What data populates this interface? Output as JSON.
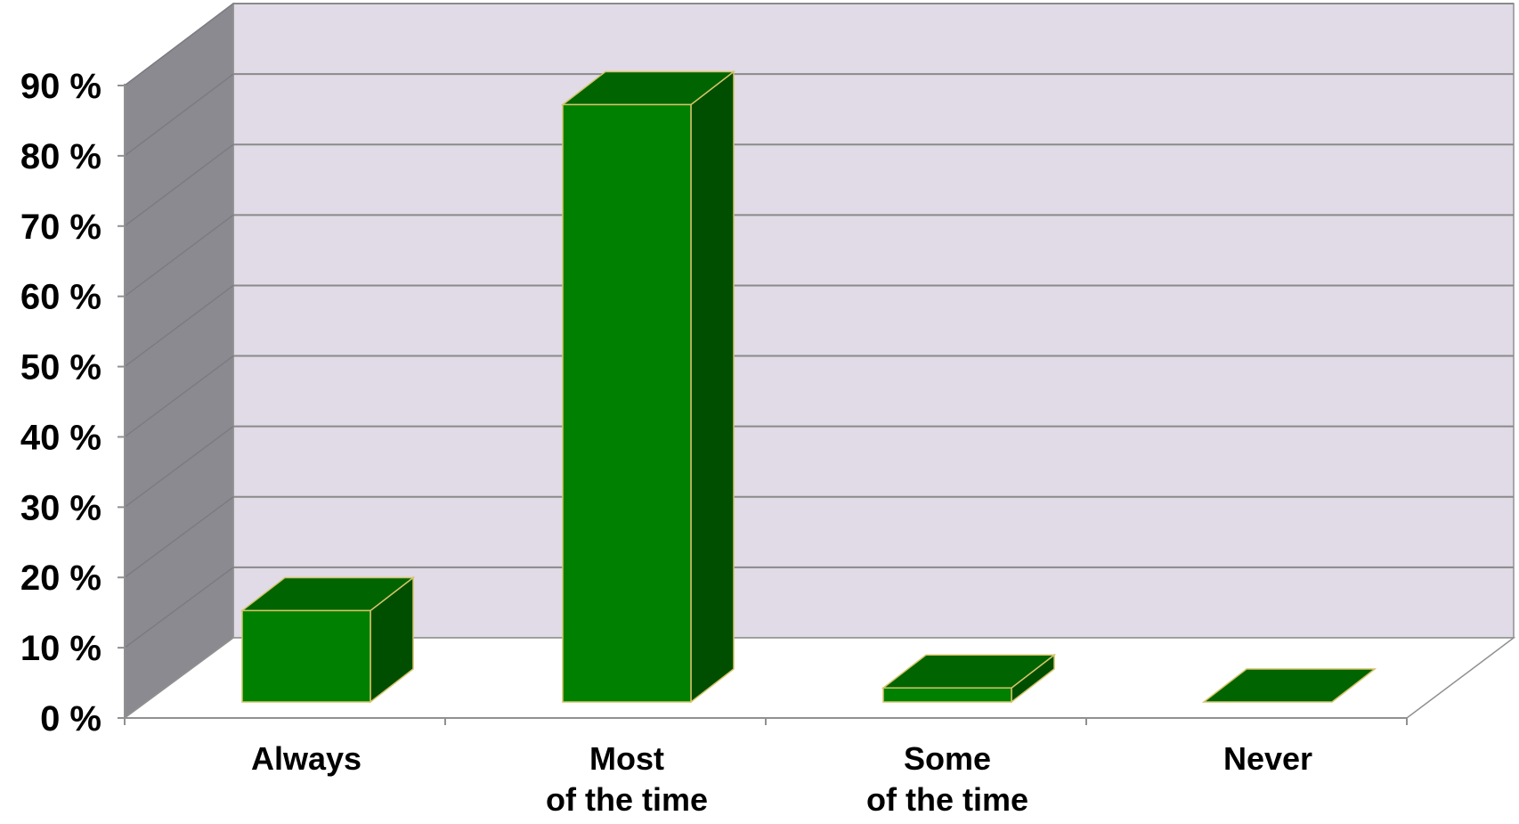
{
  "chart_data": {
    "type": "bar",
    "categories": [
      [
        "Always"
      ],
      [
        "Most",
        "of the time"
      ],
      [
        "Some",
        "of the time"
      ],
      [
        "Never"
      ]
    ],
    "values": [
      13,
      85,
      2,
      0
    ],
    "ylim": [
      0,
      90
    ],
    "yticks": [
      0,
      10,
      20,
      30,
      40,
      50,
      60,
      70,
      80,
      90
    ],
    "ytick_labels": [
      "0 %",
      "10 %",
      "20 %",
      "30 %",
      "40 %",
      "50 %",
      "60 %",
      "70 %",
      "80 %",
      "90 %"
    ],
    "title": "",
    "xlabel": "",
    "ylabel": "",
    "grid": true,
    "style": "3d",
    "colors": {
      "bar_front": "#008000",
      "bar_top": "#006400",
      "bar_side": "#004f00",
      "bar_edge": "#d4c46a",
      "back_wall": "#e0dbe6",
      "side_wall": "#8c8a91",
      "floor": "#ffffff",
      "gridline": "#8a8a8a",
      "axis": "#909090"
    }
  }
}
